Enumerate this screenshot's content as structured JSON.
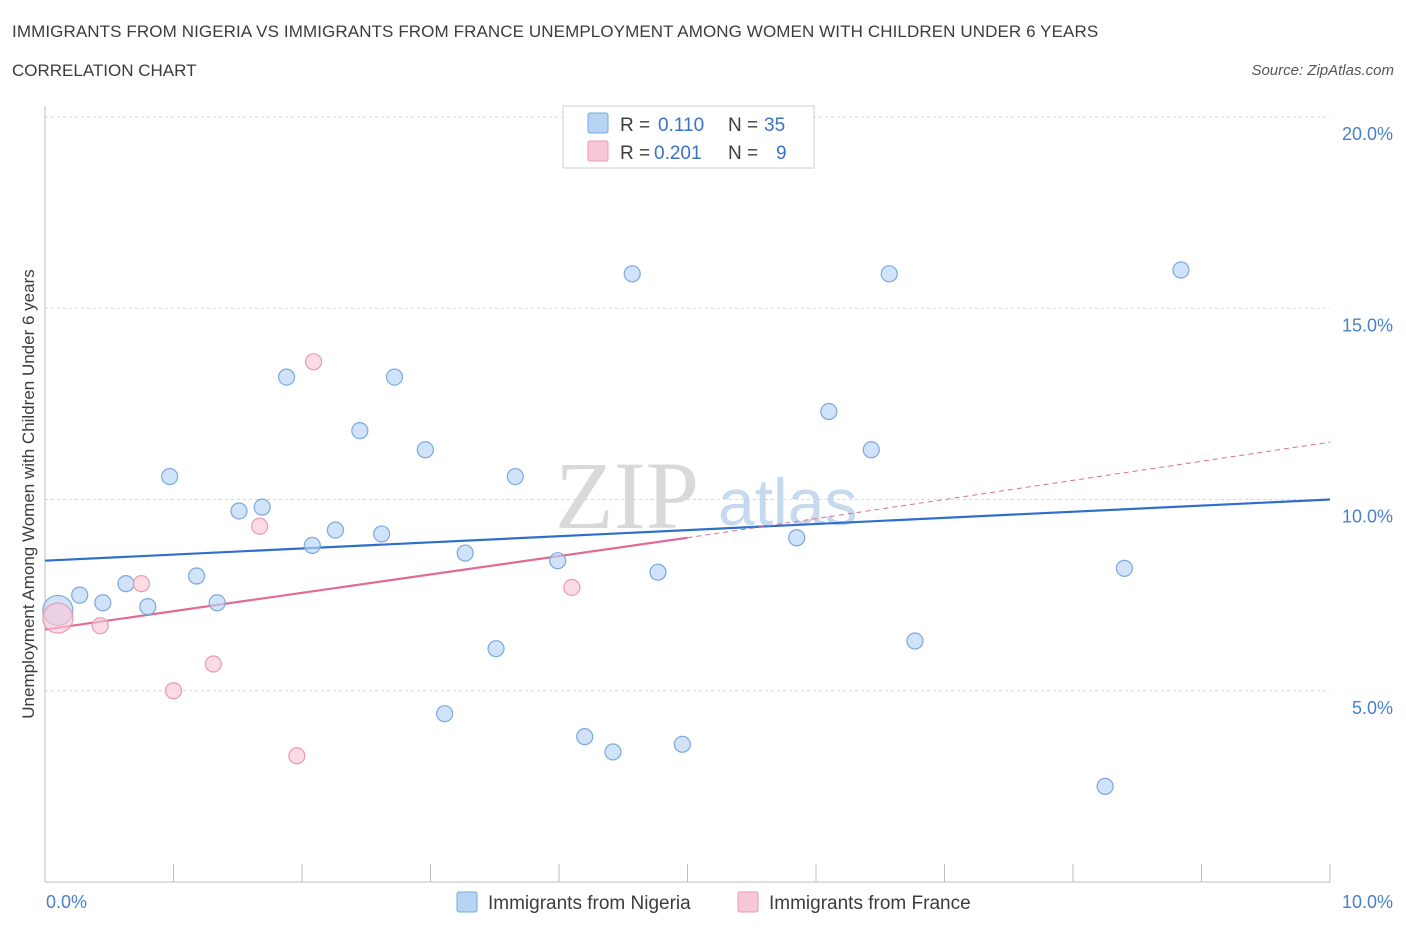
{
  "header": {
    "title": "IMMIGRANTS FROM NIGERIA VS IMMIGRANTS FROM FRANCE UNEMPLOYMENT AMONG WOMEN WITH CHILDREN UNDER 6 YEARS",
    "subtitle": "CORRELATION CHART",
    "source": "Source: ZipAtlas.com"
  },
  "watermark": {
    "zip": "ZIP",
    "atlas": "atlas"
  },
  "legend": {
    "rows": [
      {
        "r_label": "R =",
        "r_value": "0.110",
        "n_label": "N =",
        "n_value": "35",
        "color": "#b8d4f5",
        "stroke": "#7aa8e0"
      },
      {
        "r_label": "R =",
        "r_value": "0.201",
        "n_label": "N =",
        "n_value": "9",
        "color": "#f9c8d6",
        "stroke": "#e89ab4"
      }
    ]
  },
  "chart_data": {
    "type": "scatter",
    "title": "IMMIGRANTS FROM NIGERIA VS IMMIGRANTS FROM FRANCE UNEMPLOYMENT AMONG WOMEN WITH CHILDREN UNDER 6 YEARS",
    "subtitle": "CORRELATION CHART",
    "xlabel": "",
    "ylabel": "Unemployment Among Women with Children Under 6 years",
    "xlim": [
      0,
      10
    ],
    "ylim": [
      0,
      20
    ],
    "x_tick_labels": [
      "0.0%",
      "10.0%"
    ],
    "y_tick_labels": [
      "5.0%",
      "10.0%",
      "15.0%",
      "20.0%"
    ],
    "y_tick_values": [
      5,
      10,
      15,
      20
    ],
    "grid": "horizontal dashed",
    "legend_position": "top-center and bottom",
    "series": [
      {
        "name": "Immigrants from Nigeria",
        "color": "#b8d4f5",
        "stroke": "#7aa8e0",
        "line_color": "#2f6fc9",
        "trend": {
          "x": [
            0,
            10
          ],
          "y": [
            8.4,
            10.0
          ],
          "dashed_extension": false
        },
        "points": [
          {
            "x": 0.1,
            "y": 7.1,
            "big": true
          },
          {
            "x": 0.27,
            "y": 7.5
          },
          {
            "x": 0.45,
            "y": 7.3
          },
          {
            "x": 0.63,
            "y": 7.8
          },
          {
            "x": 0.8,
            "y": 7.2
          },
          {
            "x": 0.97,
            "y": 10.6
          },
          {
            "x": 1.18,
            "y": 8.0
          },
          {
            "x": 1.34,
            "y": 7.3
          },
          {
            "x": 1.51,
            "y": 9.7
          },
          {
            "x": 1.69,
            "y": 9.8
          },
          {
            "x": 1.88,
            "y": 13.2
          },
          {
            "x": 2.08,
            "y": 8.8
          },
          {
            "x": 2.26,
            "y": 9.2
          },
          {
            "x": 2.45,
            "y": 11.8
          },
          {
            "x": 2.62,
            "y": 9.1
          },
          {
            "x": 2.72,
            "y": 13.2
          },
          {
            "x": 2.96,
            "y": 11.3
          },
          {
            "x": 3.11,
            "y": 4.4
          },
          {
            "x": 3.27,
            "y": 8.6
          },
          {
            "x": 3.51,
            "y": 6.1
          },
          {
            "x": 3.66,
            "y": 10.6
          },
          {
            "x": 3.99,
            "y": 8.4
          },
          {
            "x": 4.2,
            "y": 3.8
          },
          {
            "x": 4.42,
            "y": 3.4
          },
          {
            "x": 4.57,
            "y": 15.9
          },
          {
            "x": 4.77,
            "y": 8.1
          },
          {
            "x": 4.96,
            "y": 3.6
          },
          {
            "x": 5.85,
            "y": 9.0
          },
          {
            "x": 6.1,
            "y": 12.3
          },
          {
            "x": 6.43,
            "y": 11.3
          },
          {
            "x": 6.57,
            "y": 15.9
          },
          {
            "x": 6.77,
            "y": 6.3
          },
          {
            "x": 8.25,
            "y": 2.5
          },
          {
            "x": 8.4,
            "y": 8.2
          },
          {
            "x": 8.84,
            "y": 16.0
          }
        ]
      },
      {
        "name": "Immigrants from France",
        "color": "#f9c8d6",
        "stroke": "#e89ab4",
        "line_color": "#e06b96",
        "trend": {
          "x": [
            0,
            5
          ],
          "y": [
            6.6,
            9.0
          ],
          "dashed_extension_to": [
            10,
            11.5
          ]
        },
        "points": [
          {
            "x": 0.1,
            "y": 6.9,
            "big": true
          },
          {
            "x": 0.43,
            "y": 6.7
          },
          {
            "x": 0.75,
            "y": 7.8
          },
          {
            "x": 1.0,
            "y": 5.0
          },
          {
            "x": 1.31,
            "y": 5.7
          },
          {
            "x": 1.67,
            "y": 9.3
          },
          {
            "x": 1.96,
            "y": 3.3
          },
          {
            "x": 2.09,
            "y": 13.6
          },
          {
            "x": 4.1,
            "y": 7.7
          }
        ]
      }
    ]
  },
  "bottom_legend": [
    {
      "label": "Immigrants from Nigeria",
      "color": "#b8d4f5",
      "stroke": "#7aa8e0"
    },
    {
      "label": "Immigrants from France",
      "color": "#f9c8d6",
      "stroke": "#e89ab4"
    }
  ]
}
